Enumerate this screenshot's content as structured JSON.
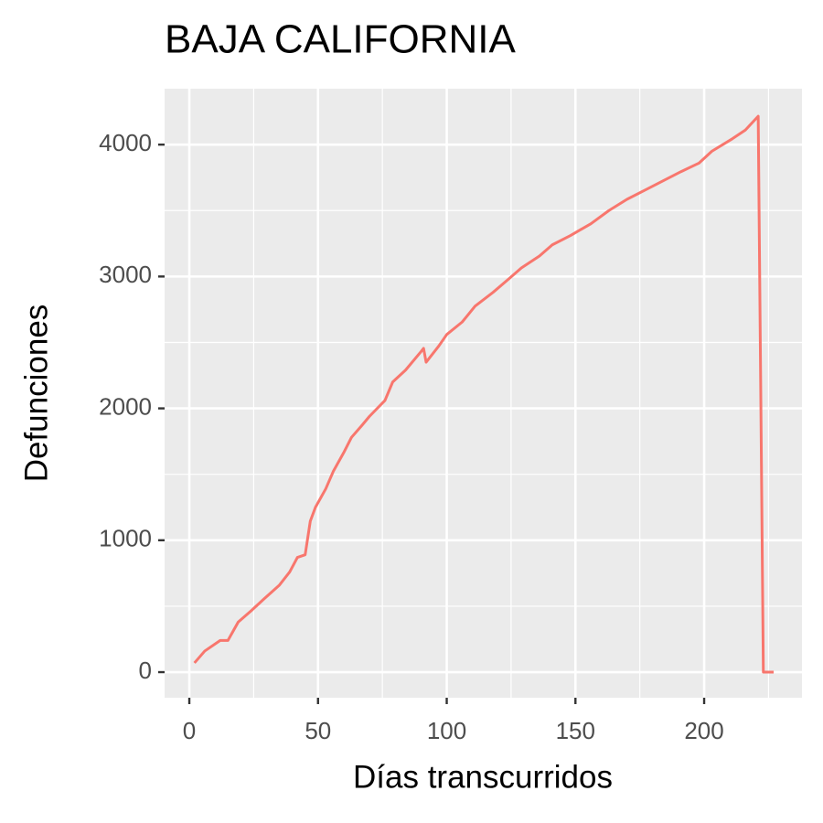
{
  "chart_data": {
    "type": "line",
    "title": "BAJA CALIFORNIA",
    "x_label": "Días transcurridos",
    "y_label": "Defunciones",
    "x": [
      2,
      6,
      12,
      15,
      19,
      24,
      29,
      35,
      39,
      42,
      45,
      47,
      49,
      53,
      56,
      60,
      63,
      67,
      70,
      76,
      79,
      84,
      90,
      91,
      92,
      97,
      100,
      106,
      111,
      118,
      124,
      129,
      136,
      141,
      148,
      156,
      163,
      170,
      177,
      184,
      191,
      198,
      203,
      211,
      216,
      221,
      223,
      227
    ],
    "series": [
      {
        "color": "#F8766D",
        "values": [
          70,
          160,
          240,
          240,
          380,
          465,
          555,
          660,
          760,
          870,
          890,
          1145,
          1250,
          1390,
          1525,
          1665,
          1780,
          1870,
          1940,
          2060,
          2200,
          2290,
          2430,
          2455,
          2350,
          2475,
          2560,
          2655,
          2775,
          2880,
          2980,
          3065,
          3155,
          3240,
          3310,
          3400,
          3500,
          3585,
          3655,
          3725,
          3795,
          3860,
          3950,
          4045,
          4110,
          4215,
          0,
          0
        ]
      }
    ],
    "xlim": [
      -9.6,
      238
    ],
    "ylim": [
      -194,
      4424
    ],
    "xticks": [
      0,
      50,
      100,
      150,
      200
    ],
    "yticks": [
      0,
      1000,
      2000,
      3000,
      4000
    ],
    "x_minor_ticks": [
      25,
      75,
      125,
      175,
      225
    ],
    "y_minor_ticks": [
      500,
      1500,
      2500,
      3500
    ],
    "grid": true
  }
}
